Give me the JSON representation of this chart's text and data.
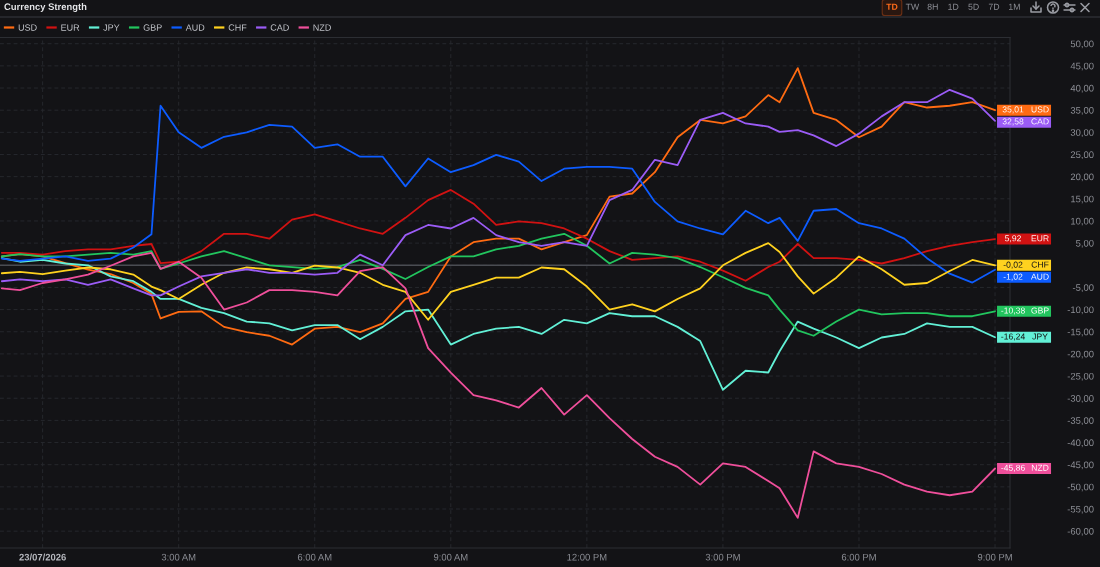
{
  "chart_data": {
    "type": "line",
    "title": "Currency Strength",
    "annotations": [
      "TD",
      "TW",
      "8H",
      "1D",
      "5D",
      "7D",
      "1M"
    ],
    "x": [
      -0.9,
      -0.5,
      0,
      0.5,
      1,
      1.5,
      2,
      2.4,
      2.6,
      3,
      3.5,
      4,
      4.5,
      5,
      5.5,
      6,
      6.5,
      7,
      7.5,
      8,
      8.5,
      9,
      9.5,
      10,
      10.5,
      11,
      11.5,
      12,
      12.5,
      13,
      13.5,
      14,
      14.5,
      15,
      15.5,
      16,
      16.25,
      16.65,
      17,
      17.5,
      18,
      18.5,
      19,
      19.5,
      20,
      20.5,
      21
    ],
    "xlim": [
      -0.94,
      21.33
    ],
    "xticks": [
      {
        "value": 0,
        "label": "23/07/2026"
      },
      {
        "value": 3,
        "label": "3:00 AM"
      },
      {
        "value": 6,
        "label": "6:00 AM"
      },
      {
        "value": 9,
        "label": "9:00 AM"
      },
      {
        "value": 12,
        "label": "12:00 PM"
      },
      {
        "value": 15,
        "label": "3:00 PM"
      },
      {
        "value": 18,
        "label": "6:00 PM"
      },
      {
        "value": 21,
        "label": "9:00 PM"
      }
    ],
    "ylim": [
      -63.8,
      51.4
    ],
    "yticks": [
      {
        "value": -60,
        "label": "-60,00"
      },
      {
        "value": -55,
        "label": "-55,00"
      },
      {
        "value": -50,
        "label": "-50,00"
      },
      {
        "value": -45,
        "label": "-45,00"
      },
      {
        "value": -40,
        "label": "-40,00"
      },
      {
        "value": -35,
        "label": "-35,00"
      },
      {
        "value": -30,
        "label": "-30,00"
      },
      {
        "value": -25,
        "label": "-25,00"
      },
      {
        "value": -20,
        "label": "-20,00"
      },
      {
        "value": -15,
        "label": "-15,00"
      },
      {
        "value": -10,
        "label": "-10,00"
      },
      {
        "value": -5,
        "label": "-5,00"
      },
      {
        "value": 0,
        "label": null
      },
      {
        "value": 5,
        "label": "5,00"
      },
      {
        "value": 10,
        "label": "10,00"
      },
      {
        "value": 15,
        "label": "15,00"
      },
      {
        "value": 20,
        "label": "20,00"
      },
      {
        "value": 25,
        "label": "25,00"
      },
      {
        "value": 30,
        "label": "30,00"
      },
      {
        "value": 35,
        "label": "35,00"
      },
      {
        "value": 40,
        "label": "40,00"
      },
      {
        "value": 45,
        "label": "45,00"
      },
      {
        "value": 50,
        "label": "50,00"
      }
    ],
    "grid": true,
    "legend": "top left",
    "ref_lines": [
      {
        "axis": "y",
        "value": 0,
        "color": "#4a4c52"
      }
    ],
    "series": [
      {
        "name": "USD",
        "color": "#ff6b12",
        "values": [
          2,
          2.5,
          2,
          0.5,
          -1,
          -2,
          -4,
          -6.5,
          -12,
          -10.5,
          -10.4,
          -13.9,
          -15.1,
          -15.9,
          -17.9,
          -14.3,
          -13.9,
          -15.1,
          -13.1,
          -7.6,
          -6,
          2,
          5.2,
          6,
          6,
          3.6,
          5.2,
          6.8,
          15.5,
          16.2,
          21,
          28.9,
          32.8,
          32,
          33.6,
          38.4,
          36.8,
          44.5,
          34.4,
          32.8,
          28.9,
          31.3,
          36.8,
          35.6,
          36,
          36.8,
          35.01
        ],
        "value_labels": [
          null,
          null,
          null,
          null,
          null,
          null,
          null,
          null,
          null,
          null,
          null,
          null,
          null,
          null,
          null,
          null,
          null,
          null,
          null,
          null,
          null,
          null,
          null,
          null,
          null,
          null,
          null,
          null,
          null,
          null,
          null,
          null,
          null,
          null,
          null,
          null,
          null,
          null,
          null,
          null,
          null,
          null,
          null,
          null,
          null,
          null,
          "35,01"
        ]
      },
      {
        "name": "EUR",
        "color": "#d11212",
        "values": [
          2.8,
          2.8,
          2.4,
          3.2,
          3.6,
          3.6,
          4.4,
          4.8,
          0.5,
          0.8,
          3.2,
          7.1,
          7.1,
          6,
          10.3,
          11.5,
          9.9,
          8.3,
          7.1,
          10.7,
          14.7,
          17,
          13.9,
          9.1,
          9.9,
          9.5,
          8.3,
          6,
          3.2,
          1.2,
          1.6,
          2,
          0.8,
          -1.2,
          -3.5,
          -0.4,
          0.8,
          4.8,
          1.6,
          1.6,
          1.2,
          0.4,
          1.6,
          3.2,
          4.4,
          5.2,
          5.92
        ],
        "value_labels": [
          null,
          null,
          null,
          null,
          null,
          null,
          null,
          null,
          null,
          null,
          null,
          null,
          null,
          null,
          null,
          null,
          null,
          null,
          null,
          null,
          null,
          null,
          null,
          null,
          null,
          null,
          null,
          null,
          null,
          null,
          null,
          null,
          null,
          null,
          null,
          null,
          null,
          null,
          null,
          null,
          null,
          null,
          null,
          null,
          null,
          null,
          "5,92"
        ]
      },
      {
        "name": "JPY",
        "color": "#62f0d6",
        "values": [
          1.6,
          0.8,
          1.2,
          0.4,
          0,
          -2.5,
          -3.6,
          -6,
          -7.6,
          -7.6,
          -9.6,
          -10.8,
          -12.7,
          -13.1,
          -14.7,
          -13.5,
          -13.5,
          -16.7,
          -13.9,
          -10.4,
          -10,
          -17.9,
          -15.5,
          -14.3,
          -13.9,
          -15.5,
          -12.3,
          -13.1,
          -10.8,
          -11.5,
          -11.5,
          -13.9,
          -17.1,
          -28.1,
          -23.8,
          -24.2,
          -19.4,
          -12.7,
          -14.3,
          -16.3,
          -18.7,
          -16.3,
          -15.5,
          -13.1,
          -13.9,
          -13.9,
          -16.24
        ],
        "value_labels": [
          null,
          null,
          null,
          null,
          null,
          null,
          null,
          null,
          null,
          null,
          null,
          null,
          null,
          null,
          null,
          null,
          null,
          null,
          null,
          null,
          null,
          null,
          null,
          null,
          null,
          null,
          null,
          null,
          null,
          null,
          null,
          null,
          null,
          null,
          null,
          null,
          null,
          null,
          null,
          null,
          null,
          null,
          null,
          null,
          null,
          null,
          "-16,24"
        ]
      },
      {
        "name": "GBP",
        "color": "#22c55e",
        "values": [
          2,
          2.5,
          2,
          2,
          2.4,
          2.8,
          2.4,
          3.2,
          -0.8,
          0.4,
          2,
          3.2,
          1.6,
          0,
          -0.4,
          -0.8,
          -0.4,
          1.2,
          -0.8,
          -3.1,
          -0.4,
          2,
          2,
          3.6,
          4.4,
          6,
          7.1,
          4.4,
          0.4,
          2.8,
          2.4,
          1.6,
          -0.4,
          -2.7,
          -5.1,
          -6.8,
          -10,
          -14.7,
          -15.9,
          -12.7,
          -10,
          -11.1,
          -10.8,
          -10.8,
          -11.5,
          -11.5,
          -10.38
        ],
        "value_labels": [
          null,
          null,
          null,
          null,
          null,
          null,
          null,
          null,
          null,
          null,
          null,
          null,
          null,
          null,
          null,
          null,
          null,
          null,
          null,
          null,
          null,
          null,
          null,
          null,
          null,
          null,
          null,
          null,
          null,
          null,
          null,
          null,
          null,
          null,
          null,
          null,
          null,
          null,
          null,
          null,
          null,
          null,
          null,
          null,
          null,
          null,
          "-10,38"
        ]
      },
      {
        "name": "AUD",
        "color": "#0d5cff",
        "values": [
          1.5,
          1,
          1.5,
          2,
          1,
          1.5,
          4,
          7,
          36,
          30,
          26.5,
          29,
          30,
          31.7,
          31.3,
          26.5,
          27.3,
          24.5,
          24.5,
          17.8,
          24.1,
          21,
          22.6,
          24.9,
          23.4,
          19,
          21.8,
          22.2,
          22.2,
          21.8,
          14.3,
          9.9,
          8.3,
          7,
          12.3,
          9.5,
          10.7,
          5.5,
          12.3,
          12.7,
          9.5,
          8.3,
          6,
          1.6,
          -1.9,
          -3.9,
          -1.02
        ],
        "value_labels": [
          null,
          null,
          null,
          null,
          null,
          null,
          null,
          null,
          null,
          null,
          null,
          null,
          null,
          null,
          null,
          null,
          null,
          null,
          null,
          null,
          null,
          null,
          null,
          null,
          null,
          null,
          null,
          null,
          null,
          null,
          null,
          null,
          null,
          null,
          null,
          null,
          null,
          null,
          null,
          null,
          null,
          null,
          null,
          null,
          null,
          null,
          "-1,02"
        ]
      },
      {
        "name": "CHF",
        "color": "#ffd21f",
        "values": [
          -1.8,
          -1.5,
          -2,
          -1.2,
          -0.5,
          -0.9,
          -2.1,
          -4.8,
          -5.6,
          -7.6,
          -4.4,
          -1.7,
          -0.5,
          -0.9,
          -1.7,
          -0.1,
          -0.5,
          -1.7,
          -4.4,
          -6,
          -12.3,
          -6,
          -4.4,
          -2.8,
          -2.8,
          -0.5,
          -0.9,
          -4.8,
          -10,
          -8.8,
          -10.4,
          -7.6,
          -5.2,
          0,
          2.8,
          5,
          3,
          -2.5,
          -6.4,
          -2.8,
          2,
          -0.9,
          -4.4,
          -4,
          -1.3,
          1.2,
          -0.02
        ],
        "value_labels": [
          null,
          null,
          null,
          null,
          null,
          null,
          null,
          null,
          null,
          null,
          null,
          null,
          null,
          null,
          null,
          null,
          null,
          null,
          null,
          null,
          null,
          null,
          null,
          null,
          null,
          null,
          null,
          null,
          null,
          null,
          null,
          null,
          null,
          null,
          null,
          null,
          null,
          null,
          null,
          null,
          null,
          null,
          null,
          null,
          null,
          null,
          "-0,02"
        ]
      },
      {
        "name": "CAD",
        "color": "#9b5cf6",
        "values": [
          -3.6,
          -3.2,
          -3.6,
          -3.2,
          -4.4,
          -3.2,
          -5.2,
          -6.8,
          -6.8,
          -4.8,
          -2.5,
          -1.7,
          -0.9,
          -1.7,
          -1.7,
          -2.1,
          -1.7,
          2.4,
          0,
          6.8,
          9.1,
          8.3,
          10.7,
          6.8,
          5.2,
          4.4,
          5.2,
          4.4,
          14.7,
          17,
          23.8,
          22.6,
          32.8,
          34.4,
          32,
          31.3,
          30.1,
          30.5,
          29.3,
          26.9,
          29.7,
          33.6,
          36.8,
          36.8,
          39.6,
          37.6,
          32.58
        ],
        "value_labels": [
          null,
          null,
          null,
          null,
          null,
          null,
          null,
          null,
          null,
          null,
          null,
          null,
          null,
          null,
          null,
          null,
          null,
          null,
          null,
          null,
          null,
          null,
          null,
          null,
          null,
          null,
          null,
          null,
          null,
          null,
          null,
          null,
          null,
          null,
          null,
          null,
          null,
          null,
          null,
          null,
          null,
          null,
          null,
          null,
          null,
          null,
          "32,58"
        ]
      },
      {
        "name": "NZD",
        "color": "#ef4f9b",
        "values": [
          -5.2,
          -5.6,
          -4,
          -3.2,
          -2.1,
          -0.1,
          2,
          2.8,
          -0.8,
          0.8,
          -2.8,
          -10,
          -8.4,
          -5.6,
          -5.6,
          -6,
          -6.8,
          -1.3,
          -0.4,
          -5.2,
          -18.7,
          -24.2,
          -29.3,
          -30.5,
          -32.1,
          -27.7,
          -33.7,
          -29.3,
          -34.5,
          -39.2,
          -43.2,
          -45.5,
          -49.5,
          -44.7,
          -45.5,
          -48.7,
          -50.3,
          -57,
          -42,
          -44.7,
          -45.5,
          -47.1,
          -49.5,
          -51.1,
          -51.9,
          -51.1,
          -45.86
        ],
        "value_labels": [
          null,
          null,
          null,
          null,
          null,
          null,
          null,
          null,
          null,
          null,
          null,
          null,
          null,
          null,
          null,
          null,
          null,
          null,
          null,
          null,
          null,
          null,
          null,
          null,
          null,
          null,
          null,
          null,
          null,
          null,
          null,
          null,
          null,
          null,
          null,
          null,
          null,
          null,
          null,
          null,
          null,
          null,
          null,
          null,
          null,
          null,
          "-45,86"
        ]
      }
    ]
  }
}
